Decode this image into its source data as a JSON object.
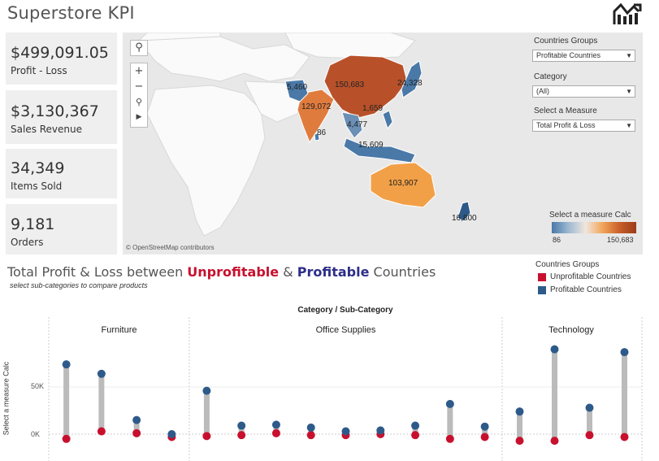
{
  "title": "Superstore KPI",
  "kpis": [
    {
      "value": "$499,091.05",
      "label": "Profit - Loss"
    },
    {
      "value": "$3,130,367",
      "label": "Sales Revenue"
    },
    {
      "value": "34,349",
      "label": "Items Sold"
    },
    {
      "value": "9,181",
      "label": "Orders"
    }
  ],
  "map": {
    "attribution": "© OpenStreetMap contributors",
    "controls": [
      "search-icon",
      "zoom-in-icon",
      "zoom-out-icon",
      "pin-icon",
      "play-icon"
    ],
    "labels": [
      "150,683",
      "129,072",
      "5,460",
      "24,328",
      "1,659",
      "4,477",
      "86",
      "15,609",
      "103,907",
      "16,800"
    ],
    "legend_title": "Select a measure Calc",
    "legend_min": "86",
    "legend_max": "150,683",
    "colors": {
      "profit_high": "#b8512a",
      "profit_mid": "#e8914e",
      "profit_low": "#4a79a8"
    }
  },
  "filters": {
    "countries_groups_label": "Countries Groups",
    "countries_groups_value": "Profitable Countries",
    "category_label": "Category",
    "category_value": "(All)",
    "measure_label": "Select a Measure",
    "measure_value": "Total Profit & Loss"
  },
  "section": {
    "title_prefix": "Total Profit & Loss between ",
    "title_unprofitable": "Unprofitable",
    "title_amp": " & ",
    "title_profitable": "Profitable",
    "title_suffix": " Countries",
    "subtitle": "select sub-categories to compare products"
  },
  "groups_legend": {
    "title": "Countries Groups",
    "items": [
      {
        "label": "Unprofitable Countries",
        "color": "#c8102e"
      },
      {
        "label": "Profitable Countries",
        "color": "#2e5a8a"
      }
    ]
  },
  "chart_data": {
    "type": "scatter",
    "title": "Category / Sub-Category",
    "ylabel": "Select a measure Calc",
    "yticks": [
      "50K",
      "0K"
    ],
    "ylim": [
      -20000,
      90000
    ],
    "categories": [
      "Furniture",
      "Office Supplies",
      "Technology"
    ],
    "subcategory_counts": [
      4,
      9,
      4
    ],
    "series": [
      {
        "name": "Profitable Countries",
        "color": "#2e5a8a",
        "values": [
          74000,
          64000,
          15000,
          0,
          46000,
          9000,
          10000,
          7000,
          3000,
          4000,
          9000,
          32000,
          8000,
          24000,
          90000,
          28000,
          87000
        ]
      },
      {
        "name": "Unprofitable Countries",
        "color": "#c8102e",
        "values": [
          -5000,
          3000,
          1000,
          -3000,
          -2000,
          -1000,
          1000,
          -1000,
          -1000,
          0,
          -1000,
          -5000,
          -3000,
          -7000,
          -7000,
          -1000,
          -3000
        ]
      }
    ]
  }
}
